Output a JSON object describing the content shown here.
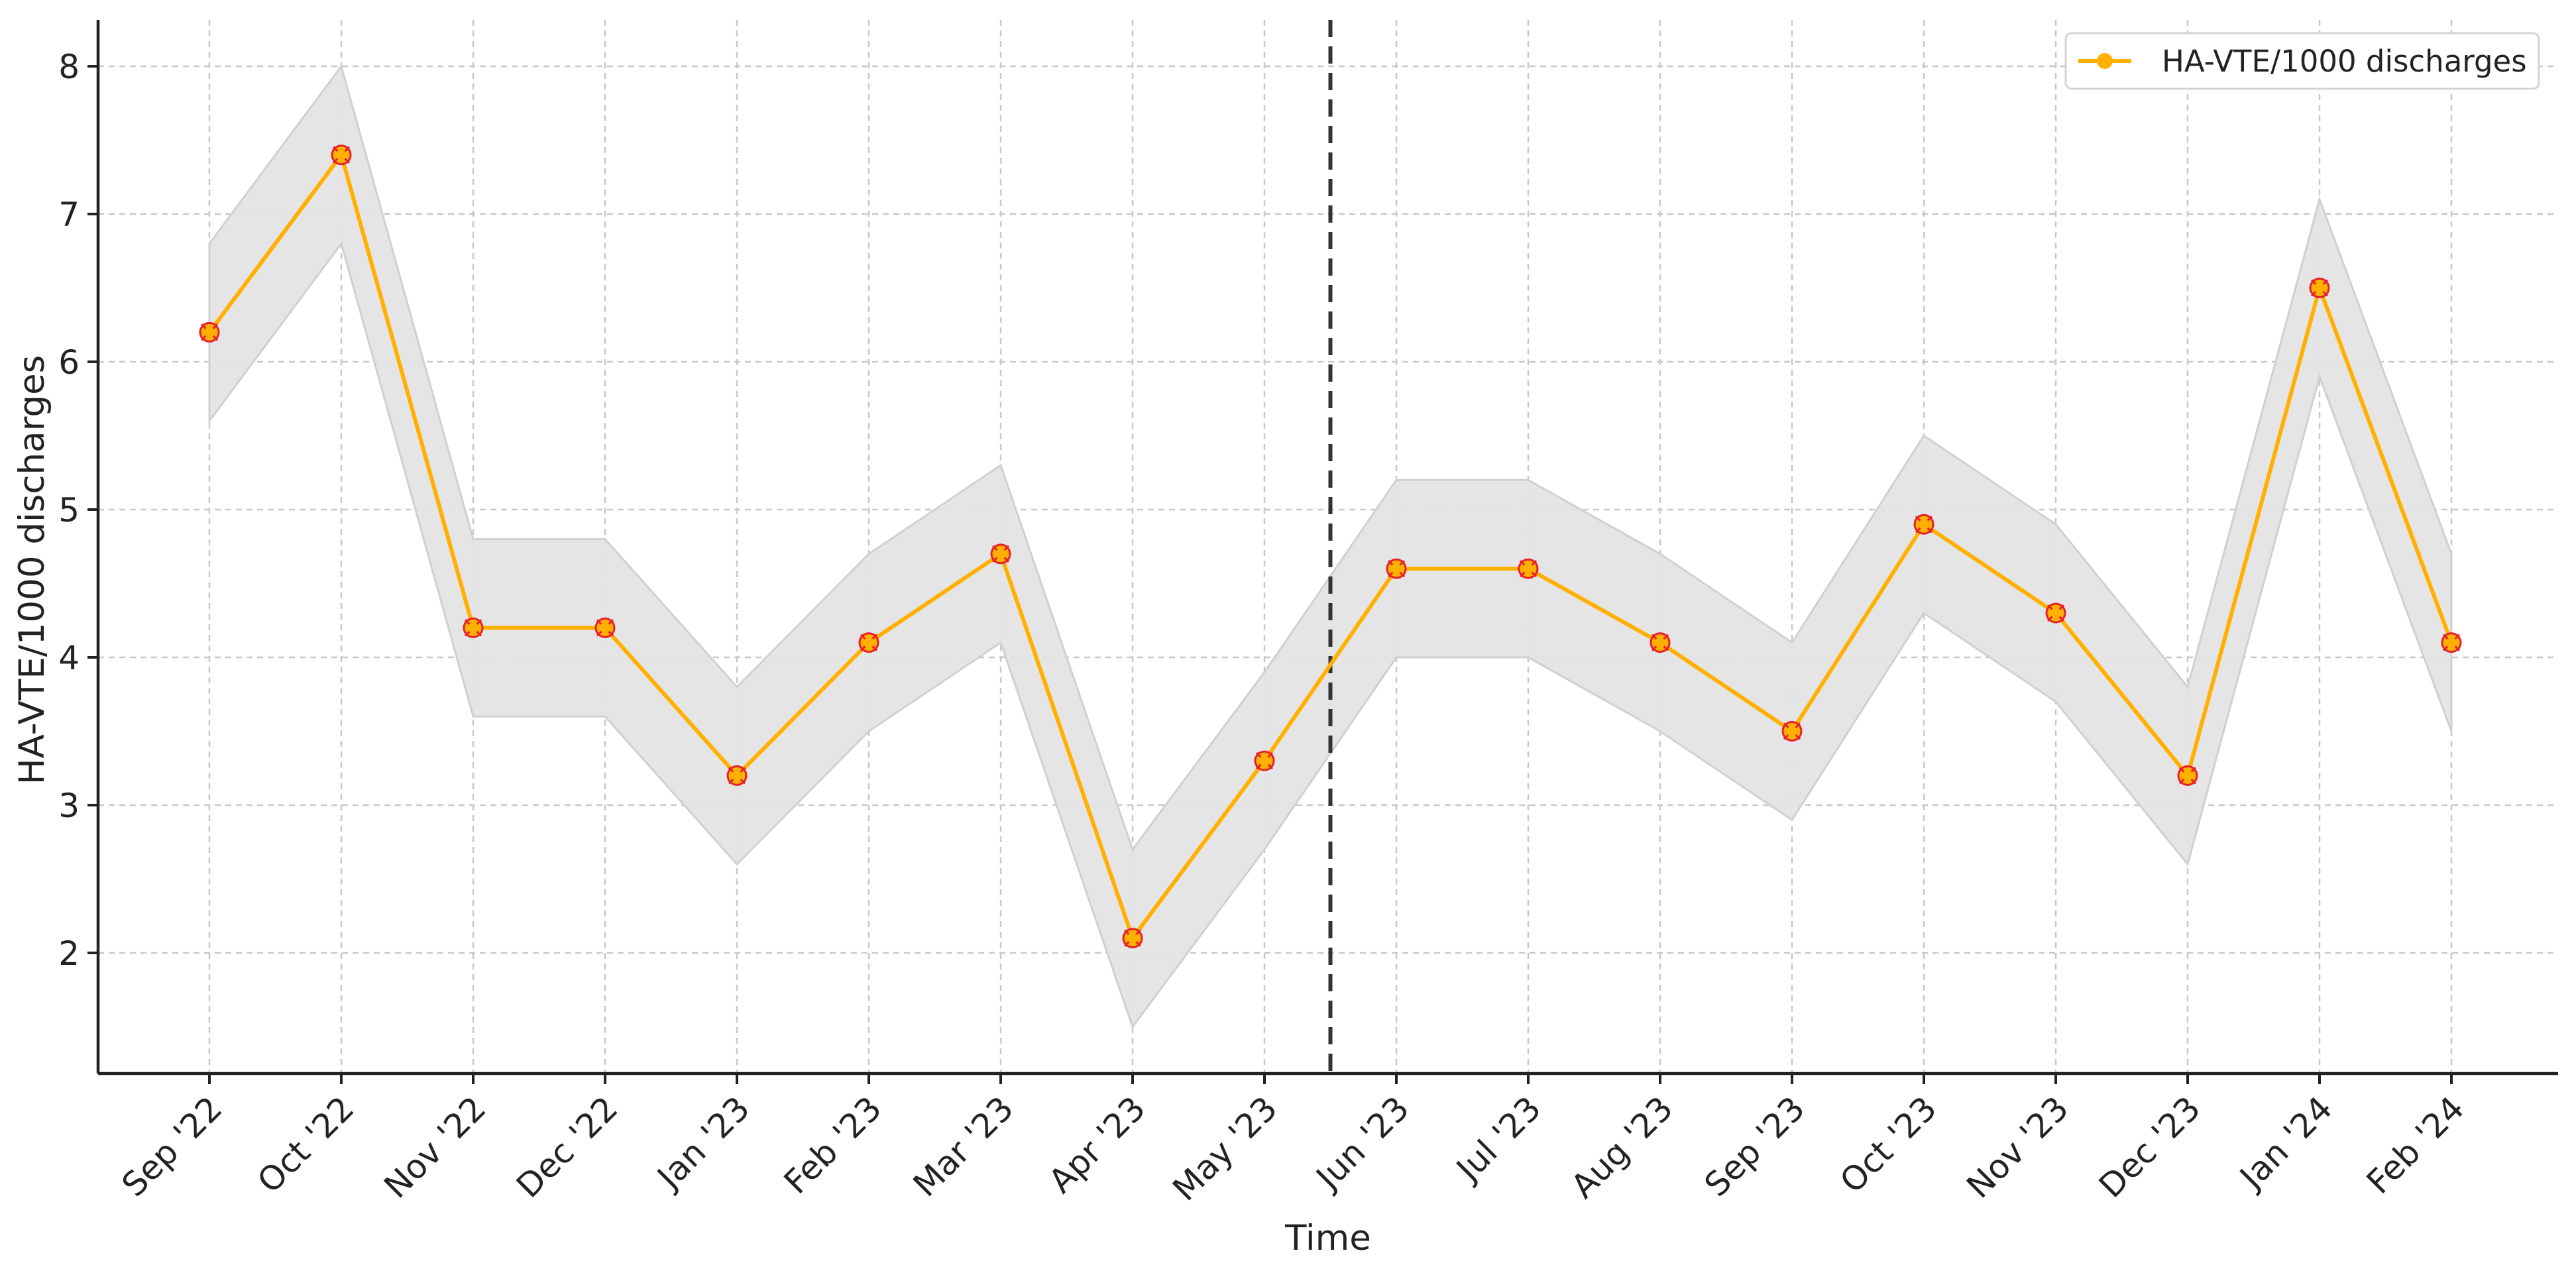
{
  "chart_data": {
    "type": "line",
    "title": "",
    "xlabel": "Time",
    "ylabel": "HA-VTE/1000 discharges",
    "categories": [
      "Sep '22",
      "Oct '22",
      "Nov '22",
      "Dec '22",
      "Jan '23",
      "Feb '23",
      "Mar '23",
      "Apr '23",
      "May '23",
      "Jun '23",
      "Jul '23",
      "Aug '23",
      "Sep '23",
      "Oct '23",
      "Nov '23",
      "Dec '23",
      "Jan '24",
      "Feb '24"
    ],
    "series": [
      {
        "name": "HA-VTE/1000 discharges",
        "values": [
          6.2,
          7.4,
          4.2,
          4.2,
          3.2,
          4.1,
          4.7,
          2.1,
          3.3,
          4.6,
          4.6,
          4.1,
          3.5,
          4.9,
          4.3,
          3.2,
          6.5,
          4.1
        ],
        "band_lower": [
          5.6,
          6.8,
          3.6,
          3.6,
          2.6,
          3.5,
          4.1,
          1.5,
          2.7,
          4.0,
          4.0,
          3.5,
          2.9,
          4.3,
          3.7,
          2.6,
          5.9,
          3.5
        ],
        "band_upper": [
          6.8,
          8.0,
          4.8,
          4.8,
          3.8,
          4.7,
          5.3,
          2.7,
          3.9,
          5.2,
          5.2,
          4.7,
          4.1,
          5.5,
          4.9,
          3.8,
          7.1,
          4.7
        ],
        "color": "#FFB000",
        "marker_edge_color": "#E8202A",
        "band_color": "#E4E4E4"
      }
    ],
    "intervention_line": {
      "position_between": [
        "May '23",
        "Jun '23"
      ],
      "style": "dashed",
      "color": "#333333"
    },
    "ylim": [
      1.2,
      8.3
    ],
    "yticks": [
      "2",
      "3",
      "4",
      "5",
      "6",
      "7",
      "8"
    ],
    "ytick_values": [
      2,
      3,
      4,
      5,
      6,
      7,
      8
    ],
    "grid": true,
    "legend": {
      "placement": "top-right",
      "label": "HA-VTE/1000 discharges"
    }
  }
}
